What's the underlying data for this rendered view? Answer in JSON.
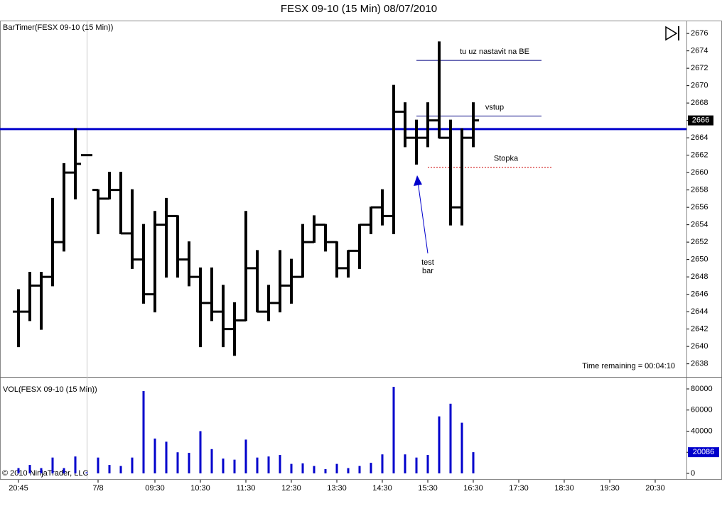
{
  "chart_data": [
    {
      "type": "ohlc",
      "title": "FESX 09-10 (15 Min)  08/07/2010",
      "panel_label": "BarTimer(FESX 09-10 (15 Min))",
      "status_text": "Time remaining = 00:04:10",
      "color": "#000000",
      "open": [
        2644,
        2644,
        2647,
        2648,
        2652,
        2660,
        2662,
        2658,
        2657,
        2658,
        2653,
        2650,
        2646,
        2654,
        2655,
        2650,
        2648,
        2645,
        2644,
        2642,
        2643,
        2649,
        2644,
        2645,
        2647,
        2648,
        2652,
        2654,
        2652,
        2649,
        2651,
        2654,
        2656,
        2655,
        2667,
        2664,
        2664,
        2666,
        2664,
        2656,
        2664
      ],
      "high": [
        2646.5,
        2648.5,
        2648.5,
        2657,
        2661,
        2665,
        2662,
        2658,
        2660,
        2660,
        2658,
        2654,
        2655.5,
        2657,
        2655,
        2652,
        2649,
        2649,
        2647,
        2645,
        2655.5,
        2651,
        2647,
        2651,
        2650,
        2654,
        2655,
        2654,
        2652,
        2651,
        2654,
        2656,
        2658,
        2670,
        2668,
        2666,
        2668,
        2675,
        2666,
        2665,
        2668
      ],
      "low": [
        2640,
        2643,
        2642,
        2647,
        2651,
        2657,
        2662,
        2653,
        2657,
        2653,
        2649,
        2645,
        2644,
        2648,
        2648,
        2647,
        2640,
        2643,
        2640,
        2639,
        2643,
        2644,
        2643,
        2644,
        2645,
        2648,
        2652,
        2651,
        2648,
        2648,
        2649,
        2653,
        2654,
        2653,
        2663,
        2661,
        2663,
        2664,
        2654,
        2654,
        2663
      ],
      "close": [
        2644,
        2647,
        2648,
        2652,
        2660,
        2661,
        2662,
        2657,
        2658,
        2653,
        2650,
        2646,
        2654,
        2655,
        2650,
        2648,
        2645,
        2644,
        2642,
        2643,
        2649,
        2644,
        2645,
        2647,
        2648,
        2652,
        2654,
        2652,
        2649,
        2651,
        2654,
        2656,
        2655,
        2667,
        2664,
        2664,
        2666,
        2664,
        2656,
        2664,
        2666
      ],
      "ylim": [
        2636.5,
        2677.4
      ],
      "yticks": [
        2638,
        2640,
        2642,
        2644,
        2646,
        2648,
        2650,
        2652,
        2654,
        2656,
        2658,
        2660,
        2662,
        2664,
        2666,
        2668,
        2670,
        2672,
        2674,
        2676
      ],
      "xlim": [
        -1.625,
        58.75
      ],
      "hline": {
        "value": 2665,
        "color": "#0000cc"
      },
      "annotations": [
        {
          "text": "tu uz nastavit na BE",
          "value": 2672.9,
          "color": "#000080"
        },
        {
          "text": "vstup",
          "value": 2666.5,
          "color": "#000080"
        },
        {
          "text": "Stopka",
          "value": 2660.6,
          "color": "#cc0000",
          "dashed": true
        }
      ],
      "arrow_note": [
        "test",
        "bar"
      ]
    },
    {
      "type": "bar",
      "panel_label": "VOL(FESX 09-10 (15 Min))",
      "copyright": "© 2010 NinjaTrader, LLC",
      "color": "#0000cc",
      "values": [
        5000,
        8000,
        5000,
        15000,
        5000,
        16000,
        1000,
        15000,
        8000,
        7000,
        15000,
        78000,
        33000,
        30000,
        20000,
        19500,
        40000,
        23000,
        14000,
        13000,
        32000,
        15000,
        16000,
        17500,
        9000,
        9500,
        7000,
        4000,
        9000,
        5000,
        7000,
        10000,
        18000,
        82000,
        18000,
        15000,
        17500,
        54000,
        66000,
        48000,
        20086
      ],
      "ylim": [
        -6050,
        88740
      ],
      "yticks": [
        0,
        20000,
        40000,
        60000,
        80000
      ],
      "xlim": [
        -1.625,
        58.75
      ],
      "xticks": [
        {
          "value": 0,
          "label": "20:45"
        },
        {
          "value": 7,
          "label": "7/8"
        },
        {
          "value": 12,
          "label": "09:30"
        },
        {
          "value": 16,
          "label": "10:30"
        },
        {
          "value": 20,
          "label": "11:30"
        },
        {
          "value": 24,
          "label": "12:30"
        },
        {
          "value": 28,
          "label": "13:30"
        },
        {
          "value": 32,
          "label": "14:30"
        },
        {
          "value": 36,
          "label": "15:30"
        },
        {
          "value": 40,
          "label": "16:30"
        },
        {
          "value": 44,
          "label": "17:30"
        },
        {
          "value": 48,
          "label": "18:30"
        },
        {
          "value": 52,
          "label": "19:30"
        },
        {
          "value": 56,
          "label": "20:30"
        }
      ]
    }
  ]
}
